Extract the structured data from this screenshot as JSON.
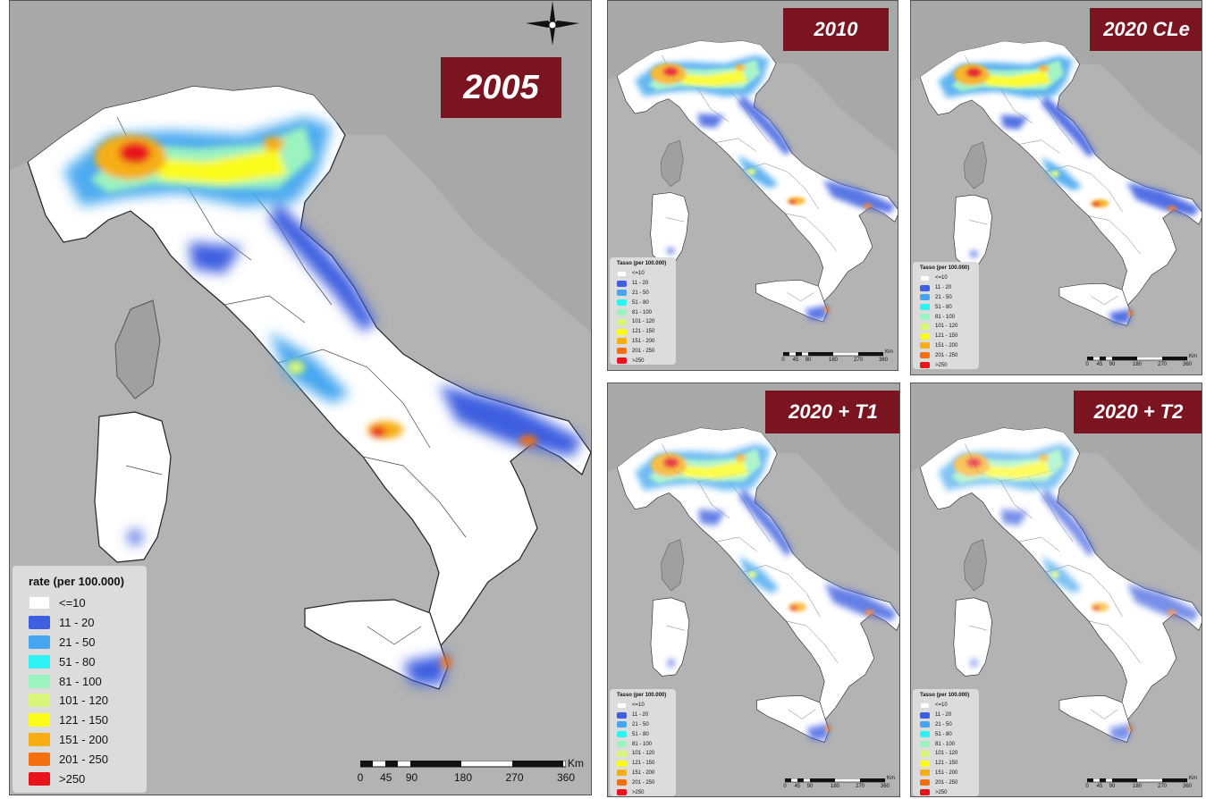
{
  "compass": {
    "icon": "compass-rose-icon"
  },
  "legend_colors": [
    "#ffffff",
    "#3d5fe0",
    "#45a6ef",
    "#2ef2f2",
    "#9bf3c0",
    "#d8f77a",
    "#fbfb1a",
    "#f6ae12",
    "#f46f0e",
    "#e8141c"
  ],
  "main_panel": {
    "year_label": "2005",
    "legend": {
      "title": "rate  (per 100.000)",
      "labels": [
        "<=10",
        "11 - 20",
        "21 - 50",
        "51 - 80",
        "81 - 100",
        "101 - 120",
        "121 - 150",
        "151 - 200",
        "201 - 250",
        ">250"
      ]
    },
    "scale": {
      "ticks": [
        "0",
        "45",
        "90",
        "180",
        "270",
        "360"
      ],
      "unit": "Km"
    }
  },
  "small_panels": [
    {
      "year_label": "2010"
    },
    {
      "year_label": "2020 CLe"
    },
    {
      "year_label": "2020 + T1"
    },
    {
      "year_label": "2020 + T2"
    }
  ],
  "small_legend": {
    "title": "Tasso (per 100.000)",
    "labels": [
      "<=10",
      "11 - 20",
      "21 - 50",
      "51 - 80",
      "81 - 100",
      "101 - 120",
      "121 - 150",
      "151 - 200",
      "201 - 250",
      ">250"
    ]
  },
  "small_scale": {
    "ticks": [
      "0",
      "45",
      "90",
      "180",
      "270",
      "360"
    ],
    "unit": "Km"
  }
}
